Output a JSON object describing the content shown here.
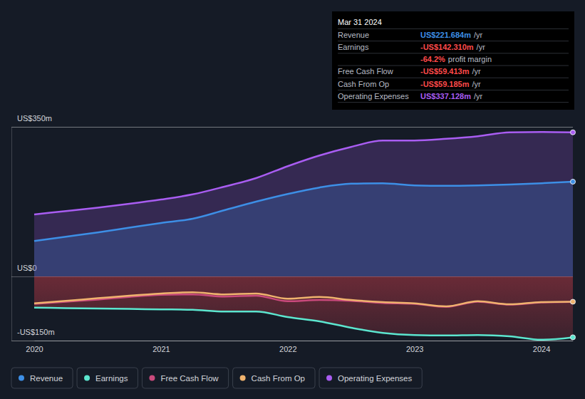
{
  "chart_data": {
    "type": "line",
    "x": [
      2020,
      2020.25,
      2020.5,
      2020.75,
      2021,
      2021.25,
      2021.5,
      2021.75,
      2022,
      2022.25,
      2022.5,
      2022.75,
      2023,
      2023.25,
      2023.5,
      2023.75,
      2024,
      2024.25
    ],
    "xlim": [
      2020,
      2024.25
    ],
    "xticks": [
      2020,
      2021,
      2022,
      2023,
      2024
    ],
    "ylim": [
      -150,
      350
    ],
    "yticks": [
      {
        "value": -150,
        "label": "-US$150m"
      },
      {
        "value": 0,
        "label": "US$0"
      },
      {
        "value": 350,
        "label": "US$350m"
      }
    ],
    "grid": true,
    "legend": "bottom-left",
    "series": [
      {
        "name": "Revenue",
        "color": "#3d8fe6",
        "type": "area",
        "marker": "circle",
        "values": [
          83,
          93,
          103,
          114,
          125,
          135,
          155,
          175,
          193,
          208,
          217,
          218,
          213,
          212,
          213,
          215,
          218,
          221.684
        ]
      },
      {
        "name": "Earnings",
        "color": "#5ce6cf",
        "type": "area",
        "marker": "circle",
        "values": [
          -73,
          -74,
          -75,
          -76,
          -77,
          -78,
          -82,
          -82,
          -95,
          -105,
          -120,
          -132,
          -137,
          -138,
          -137,
          -140,
          -148,
          -142.31
        ]
      },
      {
        "name": "Free Cash Flow",
        "color": "#c94a7c",
        "type": "line",
        "values": [
          -64,
          -59,
          -54,
          -48,
          -43,
          -42,
          -47,
          -45,
          -58,
          -55,
          -57,
          -62,
          -64,
          -71,
          -59,
          -66,
          -61,
          -59.413
        ]
      },
      {
        "name": "Cash From Op",
        "color": "#f0b36e",
        "type": "line",
        "marker": "circle",
        "values": [
          -63,
          -57,
          -51,
          -45,
          -40,
          -37,
          -42,
          -40,
          -52,
          -48,
          -55,
          -60,
          -63,
          -70,
          -58,
          -65,
          -60,
          -59.185
        ]
      },
      {
        "name": "Operating Expenses",
        "color": "#a95df2",
        "type": "area",
        "marker": "circle",
        "values": [
          145,
          153,
          161,
          170,
          180,
          192,
          210,
          230,
          258,
          283,
          303,
          318,
          318,
          322,
          328,
          337,
          338,
          337.128
        ]
      }
    ],
    "tooltip": {
      "title": "Mar 31 2024",
      "rows": [
        {
          "label": "Revenue",
          "value": "US$221.684m",
          "unit": "/yr",
          "color": "#3d8fe6"
        },
        {
          "label": "Earnings",
          "value": "-US$142.310m",
          "unit": "/yr",
          "color": "#ff4a4a"
        },
        {
          "value": "-64.2%",
          "unit": "profit margin",
          "color": "#ff4a4a"
        },
        {
          "label": "Free Cash Flow",
          "value": "-US$59.413m",
          "unit": "/yr",
          "color": "#ff4a4a"
        },
        {
          "label": "Cash From Op",
          "value": "-US$59.185m",
          "unit": "/yr",
          "color": "#ff4a4a"
        },
        {
          "label": "Operating Expenses",
          "value": "US$337.128m",
          "unit": "/yr",
          "color": "#a95df2"
        }
      ]
    }
  }
}
